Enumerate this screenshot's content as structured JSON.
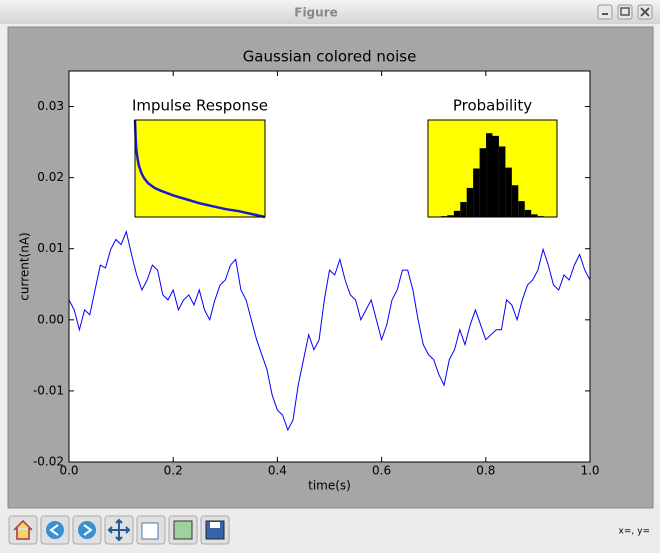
{
  "window": {
    "title": "Figure",
    "status": "x=, y="
  },
  "chart_data": [
    {
      "type": "line",
      "title": "Gaussian colored noise",
      "xlabel": "time(s)",
      "ylabel": "current(nA)",
      "color": "#0000ff",
      "x": [
        0,
        0.01,
        0.02,
        0.03,
        0.04,
        0.05,
        0.06,
        0.07,
        0.08,
        0.09,
        0.1,
        0.11,
        0.12,
        0.13,
        0.14,
        0.15,
        0.16,
        0.17,
        0.18,
        0.19,
        0.2,
        0.21,
        0.22,
        0.23,
        0.24,
        0.25,
        0.26,
        0.27,
        0.28,
        0.29,
        0.3,
        0.31,
        0.32,
        0.33,
        0.34,
        0.35,
        0.36,
        0.37,
        0.38,
        0.39,
        0.4,
        0.41,
        0.42,
        0.43,
        0.44,
        0.45,
        0.46,
        0.47,
        0.48,
        0.49,
        0.5,
        0.51,
        0.52,
        0.53,
        0.54,
        0.55,
        0.56,
        0.57,
        0.58,
        0.59,
        0.6,
        0.61,
        0.62,
        0.63,
        0.64,
        0.65,
        0.66,
        0.67,
        0.68,
        0.69,
        0.7,
        0.71,
        0.72,
        0.73,
        0.74,
        0.75,
        0.76,
        0.77,
        0.78,
        0.79,
        0.8,
        0.81,
        0.82,
        0.83,
        0.84,
        0.85,
        0.86,
        0.87,
        0.88,
        0.89,
        0.9,
        0.91,
        0.92,
        0.93,
        0.94,
        0.95,
        0.96,
        0.97,
        0.98,
        0.99,
        1.0
      ],
      "values": [
        0.0028,
        0.0014,
        -0.0014,
        0.0014,
        0.0007,
        0.0042,
        0.0077,
        0.0073,
        0.0099,
        0.0113,
        0.0106,
        0.0124,
        0.0092,
        0.0063,
        0.0042,
        0.0056,
        0.0077,
        0.007,
        0.0035,
        0.0028,
        0.0042,
        0.0014,
        0.0028,
        0.0035,
        0.0021,
        0.0042,
        0.0014,
        0,
        0.0028,
        0.0049,
        0.0056,
        0.0077,
        0.0085,
        0.0042,
        0.0028,
        0,
        -0.0028,
        -0.0049,
        -0.007,
        -0.0106,
        -0.0127,
        -0.0134,
        -0.0155,
        -0.0141,
        -0.0092,
        -0.0056,
        -0.0021,
        -0.0042,
        -0.0028,
        0.0028,
        0.007,
        0.0063,
        0.0085,
        0.0056,
        0.0035,
        0.0028,
        0,
        0.0014,
        0.0028,
        0,
        -0.0028,
        -0.0007,
        0.0028,
        0.0042,
        0.007,
        0.007,
        0.0042,
        0,
        -0.0035,
        -0.0049,
        -0.0056,
        -0.0077,
        -0.0092,
        -0.0056,
        -0.0042,
        -0.0014,
        -0.0035,
        -0.0007,
        0.0014,
        -0.0007,
        -0.0028,
        -0.0021,
        -0.0014,
        -0.0014,
        0.0028,
        0.0021,
        0,
        0.0028,
        0.0049,
        0.0056,
        0.007,
        0.0099,
        0.0077,
        0.0049,
        0.0042,
        0.0063,
        0.0056,
        0.0077,
        0.0092,
        0.007,
        0.0056
      ],
      "xlim": [
        0,
        1
      ],
      "ylim": [
        -0.02,
        0.035
      ],
      "xticks": [
        {
          "value": 0,
          "label": "0.0"
        },
        0.2,
        0.4,
        0.6,
        0.8,
        {
          "value": 1,
          "label": "1.0"
        }
      ],
      "yticks": [
        -0.02,
        -0.01,
        {
          "value": 0,
          "label": "0.00"
        },
        0.01,
        0.02,
        0.03
      ]
    },
    {
      "type": "line",
      "title": "Impulse Response",
      "color": "#1a1acc",
      "background": "#ffff00",
      "x": [
        0,
        0.005,
        0.01,
        0.02,
        0.03,
        0.05,
        0.07,
        0.1,
        0.15,
        0.2,
        0.3,
        0.4,
        0.5,
        0.6,
        0.7,
        0.8,
        0.9,
        1.0
      ],
      "values": [
        1.0,
        0.8,
        0.7,
        0.6,
        0.53,
        0.45,
        0.4,
        0.35,
        0.3,
        0.27,
        0.22,
        0.18,
        0.14,
        0.11,
        0.08,
        0.06,
        0.03,
        0.0
      ],
      "xlim": [
        0,
        1
      ],
      "ylim": [
        0,
        1
      ]
    },
    {
      "type": "histogram",
      "title": "Probability",
      "color": "#000000",
      "background": "#ffff00",
      "bins": [
        0,
        0.05,
        0.1,
        0.15,
        0.2,
        0.25,
        0.3,
        0.35,
        0.4,
        0.45,
        0.5,
        0.55,
        0.6,
        0.65,
        0.7,
        0.75,
        0.8,
        0.85,
        0.9,
        0.95,
        1.0
      ],
      "values": [
        0,
        0,
        0.01,
        0.02,
        0.07,
        0.17,
        0.33,
        0.55,
        0.78,
        0.95,
        0.92,
        0.8,
        0.56,
        0.36,
        0.18,
        0.08,
        0.03,
        0.01,
        0,
        0
      ],
      "xlim": [
        0,
        1
      ],
      "ylim": [
        0,
        1.1
      ]
    }
  ]
}
